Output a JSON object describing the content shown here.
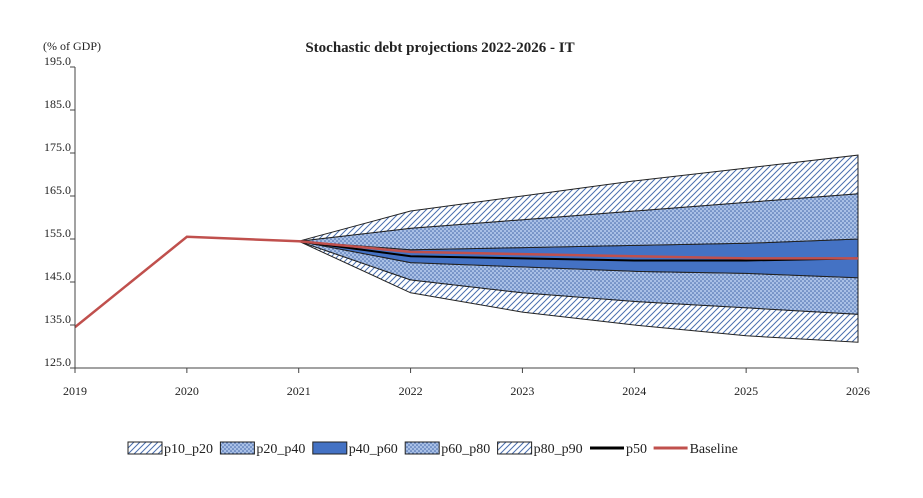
{
  "chart_data": {
    "type": "area",
    "title": "Stochastic debt projections 2022-2026 - IT",
    "ylabel": "(% of GDP)",
    "xlabel": "",
    "x": [
      2019,
      2020,
      2021,
      2022,
      2023,
      2024,
      2025,
      2026
    ],
    "x_ticks": [
      "2019",
      "2020",
      "2021",
      "2022",
      "2023",
      "2024",
      "2025",
      "2026"
    ],
    "ylim": [
      125,
      195
    ],
    "y_ticks": [
      "125.0",
      "135.0",
      "145.0",
      "155.0",
      "165.0",
      "175.0",
      "185.0",
      "195.0"
    ],
    "fan_start_index": 2,
    "percentiles": {
      "p10": [
        null,
        null,
        154.5,
        142.5,
        138.0,
        135.0,
        132.5,
        131.0
      ],
      "p20": [
        null,
        null,
        154.5,
        145.5,
        142.5,
        140.5,
        139.0,
        137.5
      ],
      "p40": [
        null,
        null,
        154.5,
        149.5,
        148.5,
        147.5,
        147.0,
        146.0
      ],
      "p60": [
        null,
        null,
        154.5,
        152.5,
        153.0,
        153.5,
        154.0,
        155.0
      ],
      "p80": [
        null,
        null,
        154.5,
        157.5,
        159.5,
        161.5,
        163.5,
        165.5
      ],
      "p90": [
        null,
        null,
        154.5,
        161.5,
        165.0,
        168.5,
        171.5,
        174.5
      ]
    },
    "series": [
      {
        "name": "p10_p20",
        "lower": "p10",
        "upper": "p20",
        "fill": "hatch",
        "color": "#8faadc"
      },
      {
        "name": "p20_p40",
        "lower": "p20",
        "upper": "p40",
        "fill": "dots",
        "color": "#8faadc"
      },
      {
        "name": "p40_p60",
        "lower": "p40",
        "upper": "p60",
        "fill": "solid",
        "color": "#4472c4"
      },
      {
        "name": "p60_p80",
        "lower": "p60",
        "upper": "p80",
        "fill": "dots",
        "color": "#8faadc"
      },
      {
        "name": "p80_p90",
        "lower": "p80",
        "upper": "p90",
        "fill": "hatch",
        "color": "#8faadc"
      },
      {
        "name": "p50",
        "values": [
          null,
          null,
          154.5,
          151.0,
          150.5,
          150.0,
          150.0,
          150.5
        ],
        "color": "#000000"
      },
      {
        "name": "Baseline",
        "values": [
          134.5,
          155.5,
          154.5,
          152.0,
          151.5,
          151.0,
          150.5,
          150.5
        ],
        "color": "#c0504d"
      }
    ],
    "grid": false,
    "legend_position": "bottom"
  }
}
